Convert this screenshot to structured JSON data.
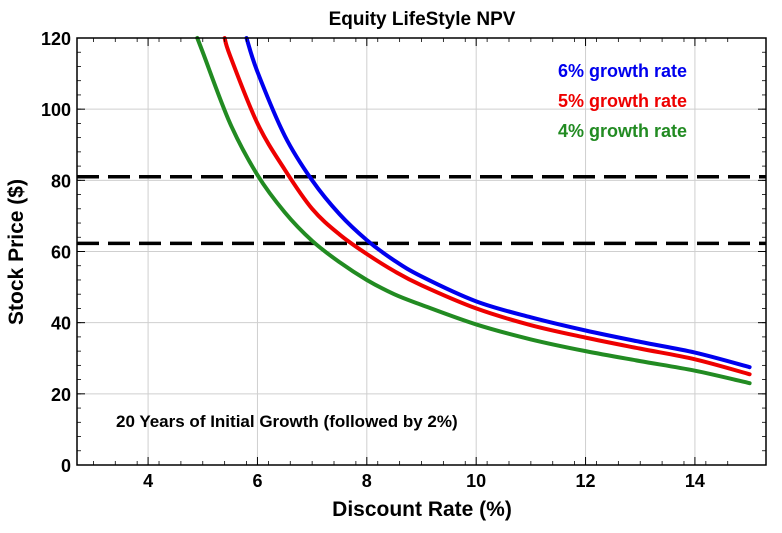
{
  "chart_data": {
    "type": "line",
    "title": "Equity LifeStyle NPV",
    "xlabel": "Discount Rate (%)",
    "ylabel": "Stock Price ($)",
    "xlim": [
      2.7,
      15.3
    ],
    "ylim": [
      0,
      120
    ],
    "xticks": [
      4,
      6,
      8,
      10,
      12,
      14
    ],
    "yticks": [
      0,
      20,
      40,
      60,
      80,
      100,
      120
    ],
    "grid": true,
    "legend_position": "top-right",
    "annotation": "20 Years of Initial Growth (followed by 2%)",
    "reference_lines": [
      {
        "y": 81,
        "style": "dashed",
        "color": "#000000"
      },
      {
        "y": 62.3,
        "style": "dashed",
        "color": "#000000"
      }
    ],
    "series": [
      {
        "name": "6% growth rate",
        "color": "#0000ee",
        "x": [
          5.8,
          6.0,
          6.5,
          7.0,
          7.5,
          8.0,
          8.5,
          9.0,
          10.0,
          11.0,
          12.0,
          13.0,
          14.0,
          15.0
        ],
        "y": [
          120,
          110.5,
          92.5,
          80,
          70.5,
          63.2,
          57.5,
          53,
          46,
          41.5,
          37.8,
          34.6,
          31.6,
          27.5
        ]
      },
      {
        "name": "5% growth rate",
        "color": "#ee0000",
        "x": [
          5.4,
          5.5,
          6.0,
          6.5,
          7.0,
          7.5,
          8.0,
          8.5,
          9.0,
          10.0,
          11.0,
          12.0,
          13.0,
          14.0,
          15.0
        ],
        "y": [
          120,
          115,
          96,
          83,
          72,
          64.8,
          59.3,
          54.5,
          50.5,
          44,
          39.3,
          35.8,
          32.7,
          29.7,
          25.5
        ]
      },
      {
        "name": "4% growth rate",
        "color": "#228b22",
        "x": [
          4.9,
          5.0,
          5.5,
          6.0,
          6.5,
          7.0,
          7.5,
          8.0,
          8.5,
          9.0,
          10.0,
          11.0,
          12.0,
          13.0,
          14.0,
          15.0
        ],
        "y": [
          120,
          116,
          96,
          81.5,
          71,
          63,
          57,
          52,
          48,
          45,
          39.5,
          35.3,
          32,
          29.2,
          26.5,
          23
        ]
      }
    ]
  }
}
